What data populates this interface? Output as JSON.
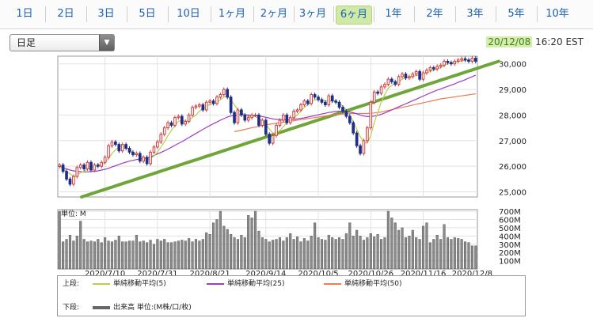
{
  "tabs": [
    {
      "label": "1日"
    },
    {
      "label": "2日"
    },
    {
      "label": "3日"
    },
    {
      "label": "5日"
    },
    {
      "label": "10日"
    },
    {
      "label": "1ヶ月"
    },
    {
      "label": "2ヶ月"
    },
    {
      "label": "3ヶ月"
    },
    {
      "label": "6ヶ月",
      "active": true
    },
    {
      "label": "1年"
    },
    {
      "label": "2年"
    },
    {
      "label": "3年"
    },
    {
      "label": "5年"
    },
    {
      "label": "10年"
    }
  ],
  "period_select": {
    "value": "日足",
    "icon": "dropdown-arrow-icon"
  },
  "timestamp": {
    "date": "20/12/08",
    "time": "16:20 EST"
  },
  "chart_data": [
    {
      "type": "candlestick",
      "y_axis_ticks": [
        "30,000",
        "29,000",
        "28,000",
        "27,000",
        "26,000",
        "25,000"
      ],
      "ylim": [
        24800,
        30300
      ],
      "colors": {
        "up": "#d23c3c",
        "down": "#1f2d8a",
        "ma5": "#b9cd4a",
        "ma25": "#9b3ec0",
        "ma50": "#ef7b4f",
        "trend": "#6fa53a"
      },
      "sessions": 120,
      "close": [
        26050,
        25800,
        25500,
        25300,
        25600,
        25950,
        26050,
        25900,
        26150,
        25850,
        26050,
        26000,
        26150,
        26350,
        26800,
        26950,
        26850,
        26600,
        26850,
        26700,
        26550,
        26450,
        26500,
        26200,
        26350,
        26100,
        26550,
        26750,
        26950,
        27250,
        27500,
        27700,
        27600,
        27900,
        27950,
        27650,
        27750,
        28000,
        28300,
        28350,
        28400,
        28200,
        28500,
        28550,
        28450,
        28700,
        28800,
        29000,
        28700,
        28100,
        27700,
        28200,
        28000,
        27800,
        27900,
        28000,
        28000,
        27600,
        27800,
        27250,
        26900,
        27200,
        27600,
        27800,
        28000,
        27700,
        27900,
        28150,
        28200,
        28400,
        28550,
        28450,
        28800,
        28700,
        28600,
        28500,
        28400,
        28750,
        28550,
        28500,
        28300,
        28150,
        27950,
        27700,
        27300,
        26800,
        26500,
        27000,
        27500,
        28500,
        28900,
        28850,
        29100,
        29200,
        29400,
        29300,
        29200,
        29500,
        29600,
        29450,
        29500,
        29600,
        29700,
        29400,
        29650,
        29750,
        29850,
        29800,
        29900,
        29950,
        30100,
        30050,
        30000,
        30100,
        30150,
        30200,
        30150,
        30100,
        30220,
        30100
      ],
      "ma5": [
        26000,
        25900,
        25800,
        25700,
        25600,
        25650,
        25750,
        25800,
        25900,
        25950,
        26000,
        26000,
        26050,
        26150,
        26300,
        26500,
        26650,
        26750,
        26800,
        26750,
        26650,
        26550,
        26450,
        26400,
        26350,
        26250,
        26300,
        26400,
        26550,
        26750,
        26950,
        27200,
        27400,
        27600,
        27750,
        27800,
        27750,
        27800,
        27900,
        28000,
        28150,
        28250,
        28350,
        28400,
        28450,
        28500,
        28600,
        28700,
        28750,
        28600,
        28400,
        28200,
        28100,
        28000,
        27950,
        27950,
        27950,
        27850,
        27800,
        27650,
        27450,
        27300,
        27300,
        27400,
        27550,
        27700,
        27800,
        27900,
        28000,
        28150,
        28300,
        28400,
        28500,
        28600,
        28600,
        28600,
        28550,
        28550,
        28550,
        28550,
        28450,
        28350,
        28200,
        28000,
        27750,
        27450,
        27150,
        26950,
        26900,
        27200,
        27700,
        28100,
        28500,
        28800,
        29050,
        29150,
        29250,
        29300,
        29400,
        29450,
        29500,
        29500,
        29550,
        29550,
        29600,
        29650,
        29700,
        29750,
        29800,
        29850,
        29950,
        30000,
        30050,
        30050,
        30100,
        30100,
        30150,
        30150,
        30150,
        30150
      ],
      "ma25": [
        26000,
        25950,
        25900,
        25850,
        25820,
        25800,
        25790,
        25780,
        25780,
        25790,
        25800,
        25820,
        25850,
        25880,
        25920,
        25970,
        26020,
        26070,
        26120,
        26160,
        26200,
        26230,
        26260,
        26280,
        26300,
        26330,
        26370,
        26420,
        26480,
        26540,
        26600,
        26670,
        26740,
        26820,
        26890,
        26960,
        27040,
        27120,
        27200,
        27280,
        27360,
        27440,
        27520,
        27590,
        27660,
        27730,
        27800,
        27860,
        27920,
        27960,
        27990,
        28000,
        28010,
        28010,
        28000,
        27990,
        27980,
        27960,
        27940,
        27910,
        27880,
        27850,
        27830,
        27820,
        27810,
        27810,
        27820,
        27830,
        27850,
        27870,
        27890,
        27920,
        27950,
        27980,
        28010,
        28040,
        28070,
        28100,
        28120,
        28140,
        28150,
        28150,
        28140,
        28120,
        28090,
        28050,
        28000,
        27960,
        27940,
        27940,
        27960,
        27990,
        28030,
        28080,
        28140,
        28200,
        28260,
        28320,
        28380,
        28440,
        28500,
        28560,
        28620,
        28680,
        28740,
        28800,
        28860,
        28920,
        28970,
        29020,
        29070,
        29120,
        29170,
        29220,
        29280,
        29330,
        29380,
        29440,
        29500,
        29560
      ],
      "ma50": [
        null,
        null,
        null,
        null,
        null,
        null,
        null,
        null,
        null,
        null,
        null,
        null,
        null,
        null,
        null,
        null,
        null,
        null,
        null,
        null,
        null,
        null,
        null,
        null,
        null,
        null,
        null,
        null,
        null,
        null,
        null,
        null,
        null,
        null,
        null,
        null,
        null,
        null,
        null,
        null,
        null,
        null,
        null,
        null,
        null,
        null,
        null,
        null,
        null,
        null,
        27350,
        27380,
        27410,
        27440,
        27470,
        27500,
        27530,
        27560,
        27590,
        27620,
        27640,
        27660,
        27680,
        27700,
        27720,
        27740,
        27760,
        27780,
        27800,
        27820,
        27840,
        27860,
        27880,
        27900,
        27920,
        27940,
        27960,
        27980,
        28000,
        28020,
        28030,
        28040,
        28050,
        28060,
        28060,
        28060,
        28060,
        28060,
        28060,
        28070,
        28080,
        28100,
        28120,
        28150,
        28180,
        28210,
        28240,
        28270,
        28300,
        28330,
        28360,
        28390,
        28420,
        28450,
        28480,
        28510,
        28540,
        28570,
        28600,
        28630,
        28650,
        28670,
        28690,
        28710,
        28730,
        28750,
        28770,
        28790,
        28810,
        28830
      ],
      "trend": [
        24800,
        24850,
        24900,
        24950,
        25000,
        25050,
        25100,
        25150,
        25200,
        25250,
        25300,
        25350,
        25400,
        25450,
        25500,
        25550,
        25600,
        25650,
        25700,
        25750,
        25800,
        25850,
        25900,
        25950,
        26000,
        26050,
        26100,
        26150,
        26200,
        26250,
        26300,
        26350,
        26400,
        26450,
        26500,
        26550,
        26600,
        26650,
        26700,
        26750,
        26800,
        26850,
        26900,
        26950,
        27000,
        27050,
        27100,
        27150,
        27200,
        27250,
        27300,
        27350,
        27400,
        27450,
        27500,
        27550,
        27600,
        27650,
        27700,
        27750,
        27800,
        27850,
        27900,
        27950,
        28000,
        28050,
        28100,
        28150,
        28200,
        28250,
        28300,
        28350,
        28400,
        28450,
        28500,
        28550,
        28600,
        28650,
        28700,
        28750,
        28800,
        28850,
        28900,
        28950,
        29000,
        29050,
        29100,
        29150,
        29200,
        29250,
        29300,
        29350,
        29400,
        29450,
        29500,
        29550,
        29600,
        29650,
        29700,
        29750,
        29800,
        29850,
        29900,
        29950,
        30000,
        30050,
        30100
      ]
    },
    {
      "type": "bar",
      "title": "単位: M",
      "y_axis_ticks": [
        "700M",
        "600M",
        "500M",
        "400M",
        "300M",
        "200M",
        "100M"
      ],
      "ylim": [
        0,
        720
      ],
      "x_tick_labels": [
        "2020/7/10",
        "2020/7/31",
        "2020/8/21",
        "2020/9/14",
        "2020/10/5",
        "2020/10/26",
        "2020/11/16",
        "2020/12/8"
      ],
      "values": [
        700,
        330,
        360,
        410,
        340,
        400,
        580,
        360,
        330,
        340,
        330,
        360,
        320,
        380,
        340,
        330,
        350,
        400,
        330,
        330,
        340,
        340,
        410,
        330,
        340,
        320,
        350,
        300,
        360,
        340,
        360,
        320,
        320,
        330,
        340,
        350,
        340,
        370,
        330,
        360,
        340,
        360,
        440,
        420,
        560,
        600,
        700,
        520,
        480,
        420,
        380,
        360,
        410,
        380,
        650,
        620,
        700,
        460,
        380,
        360,
        330,
        350,
        360,
        380,
        340,
        380,
        430,
        360,
        390,
        330,
        370,
        340,
        400,
        560,
        380,
        360,
        350,
        410,
        380,
        360,
        380,
        360,
        430,
        560,
        400,
        470,
        400,
        350,
        380,
        430,
        390,
        420,
        360,
        380,
        700,
        620,
        560,
        470,
        500,
        380,
        400,
        470,
        380,
        360,
        520,
        560,
        320,
        360,
        410,
        360,
        540,
        380,
        360,
        380,
        370,
        360,
        330,
        320,
        280,
        280
      ]
    }
  ],
  "legend": {
    "upper_label": "上段:",
    "lower_label": "下段:",
    "items": [
      {
        "label": "単純移動平均(5)"
      },
      {
        "label": "単純移動平均(25)"
      },
      {
        "label": "単純移動平均(50)"
      }
    ],
    "volume_label": "出来高 単位:(M株/口/枚)"
  }
}
